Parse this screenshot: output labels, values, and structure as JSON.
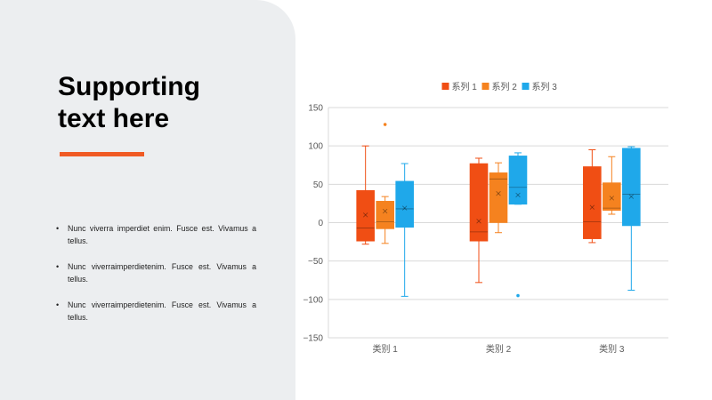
{
  "slide": {
    "title_lines": [
      "Supporting",
      "text here"
    ],
    "bullets": [
      "Nunc viverra imperdiet enim. Fusce est. Vivamus a tellus.",
      "Nunc viverraimperdietenim. Fusce est. Vivamus a tellus.",
      "Nunc viverraimperdietenim. Fusce est. Vivamus a tellus."
    ],
    "bullet_glyph": "•",
    "accent_color": "#f05a24",
    "panel_color": "#eceef0"
  },
  "chart_data": {
    "type": "boxplot",
    "categories": [
      "类别 1",
      "类别 2",
      "类别 3"
    ],
    "ylim": [
      -150,
      150
    ],
    "yticks": [
      150,
      100,
      50,
      0,
      -50,
      -100,
      -150
    ],
    "ytick_labels": [
      "150",
      "100",
      "50",
      "0",
      "−50",
      "−100",
      "−150"
    ],
    "grid": true,
    "legend_position": "top",
    "series": [
      {
        "name": "系列 1",
        "color": "#f04e14",
        "boxes": [
          {
            "min": -28,
            "q1": -24,
            "median": -7,
            "q3": 42,
            "max": 100,
            "mean": 10,
            "outliers": []
          },
          {
            "min": -78,
            "q1": -24,
            "median": -12,
            "q3": 77,
            "max": 84,
            "mean": 2,
            "outliers": []
          },
          {
            "min": -26,
            "q1": -21,
            "median": 1,
            "q3": 73,
            "max": 95,
            "mean": 20,
            "outliers": []
          }
        ]
      },
      {
        "name": "系列 2",
        "color": "#f5821f",
        "boxes": [
          {
            "min": -27,
            "q1": -8,
            "median": 1,
            "q3": 28,
            "max": 34,
            "mean": 15,
            "outliers": [
              128
            ]
          },
          {
            "min": -13,
            "q1": 0,
            "median": 57,
            "q3": 65,
            "max": 78,
            "mean": 38,
            "outliers": []
          },
          {
            "min": 11,
            "q1": 16,
            "median": 19,
            "q3": 52,
            "max": 86,
            "mean": 32,
            "outliers": []
          }
        ]
      },
      {
        "name": "系列 3",
        "color": "#1fa8ea",
        "boxes": [
          {
            "min": -96,
            "q1": -6,
            "median": 18,
            "q3": 54,
            "max": 77,
            "mean": 19,
            "outliers": []
          },
          {
            "min": 24,
            "q1": 24,
            "median": 46,
            "q3": 87,
            "max": 91,
            "mean": 36,
            "outliers": [
              -95
            ]
          },
          {
            "min": -88,
            "q1": -4,
            "median": 37,
            "q3": 97,
            "max": 99,
            "mean": 34,
            "outliers": []
          }
        ]
      }
    ]
  }
}
